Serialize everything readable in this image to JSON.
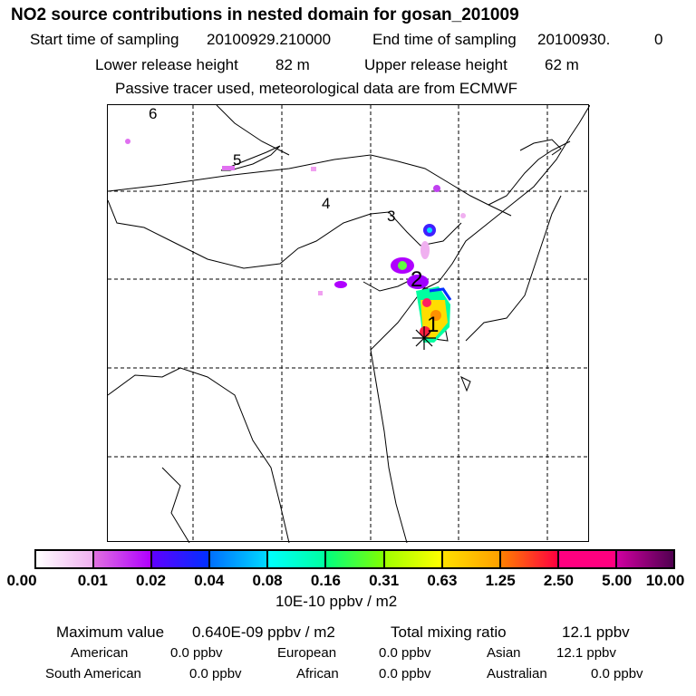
{
  "header": {
    "title": "NO2 source contributions in nested domain for gosan_201009",
    "start_label": "Start time of sampling",
    "start_value": "20100929.210000",
    "end_label": "End time of sampling",
    "end_value": "20100930.",
    "end_value2": "0",
    "lower_label": "Lower release height",
    "lower_value": "82 m",
    "upper_label": "Upper release height",
    "upper_value": "62 m",
    "note": "Passive tracer used, meteorological data are from ECMWF"
  },
  "map": {
    "labels": [
      "6",
      "5",
      "4",
      "3",
      "2",
      "1"
    ],
    "receptor_icon": "asterisk-star-icon"
  },
  "colorbar": {
    "ticks": [
      "0.00",
      "0.01",
      "0.02",
      "0.04",
      "0.08",
      "0.16",
      "0.31",
      "0.63",
      "1.25",
      "2.50",
      "5.00",
      "10.00"
    ],
    "unit": "10E-10 ppbv / m2",
    "segment_colors": [
      [
        "#ffffff",
        "#f0b0f0"
      ],
      [
        "#e070e0",
        "#b000ff"
      ],
      [
        "#6000ff",
        "#0030ff"
      ],
      [
        "#0070ff",
        "#00d8ff"
      ],
      [
        "#00ffff",
        "#00ffa0"
      ],
      [
        "#00ff80",
        "#80ff00"
      ],
      [
        "#a0ff00",
        "#ffff00"
      ],
      [
        "#ffe000",
        "#ffa000"
      ],
      [
        "#ff8000",
        "#ff0040"
      ],
      [
        "#ff0080",
        "#ff0080"
      ],
      [
        "#d000a0",
        "#500050"
      ]
    ]
  },
  "footer": {
    "max_label": "Maximum value",
    "max_value": "0.640E-09 ppbv / m2",
    "total_label": "Total mixing ratio",
    "total_value": "12.1 ppbv",
    "regions": [
      {
        "name": "American",
        "value": "0.0 ppbv"
      },
      {
        "name": "European",
        "value": "0.0 ppbv"
      },
      {
        "name": "Asian",
        "value": "12.1 ppbv"
      },
      {
        "name": "South American",
        "value": "0.0 ppbv"
      },
      {
        "name": "African",
        "value": "0.0 ppbv"
      },
      {
        "name": "Australian",
        "value": "0.0 ppbv"
      }
    ]
  }
}
